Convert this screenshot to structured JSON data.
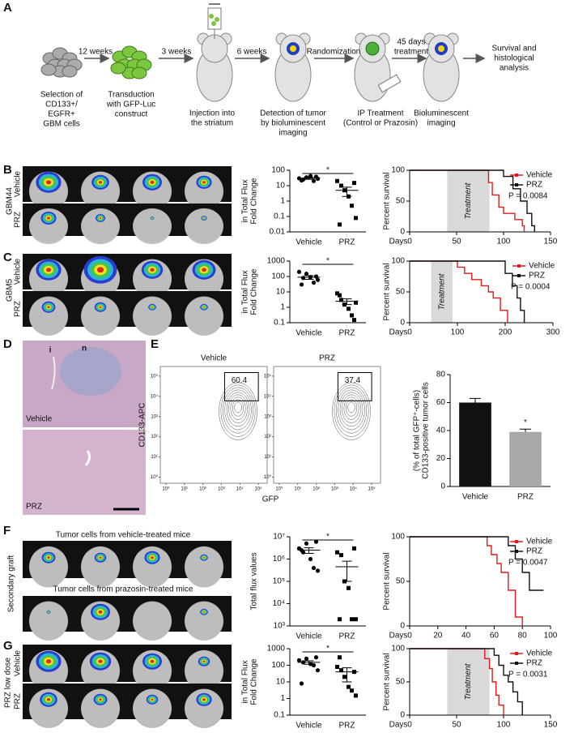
{
  "figure": {
    "panel_letters": [
      "A",
      "B",
      "C",
      "D",
      "E",
      "F",
      "G"
    ],
    "schematic": {
      "arrows": [
        [
          "12 weeks"
        ],
        [
          "3 weeks"
        ],
        [
          "6 weeks"
        ],
        [
          "Randomization"
        ],
        [
          "45 days",
          "treatment"
        ]
      ],
      "captions": [
        [
          "Selection of",
          "CD133+/",
          "EGFR+",
          "GBM cells"
        ],
        [
          "Transduction",
          "with GFP-Luc",
          "construct"
        ],
        [
          "Injection into",
          "the striatum"
        ],
        [
          "Detection of tumor",
          "by bioluminescent",
          "imaging"
        ],
        [
          "IP Treatment",
          "(Control or Prazosin)"
        ],
        [
          "Bioluminescent",
          "imaging"
        ],
        [
          "Survival and",
          "histological",
          "analysis"
        ]
      ]
    },
    "images": {
      "B": {
        "model": "GBM44",
        "rows": [
          "Vehicle",
          "PRZ"
        ]
      },
      "C": {
        "model": "GBM5",
        "rows": [
          "Vehicle",
          "PRZ"
        ]
      },
      "D": {
        "regions": [
          "i",
          "n"
        ],
        "rows": [
          "Vehicle",
          "PRZ"
        ]
      },
      "F": {
        "model": "Secondary graft",
        "rows": [
          "Tumor cells from vehicle-treated mice",
          "Tumor cells from prazosin-treated mice"
        ]
      },
      "G": {
        "model": "PRZ low dose",
        "rows": [
          "Vehicle",
          "PRZ"
        ]
      }
    }
  },
  "chart_data": [
    {
      "type": "dot",
      "categories": [
        "Vehicle",
        "PRZ"
      ],
      "markers": [
        "circle",
        "square"
      ],
      "values": [
        [
          30,
          25,
          35,
          42,
          20,
          28,
          22,
          38
        ],
        [
          20,
          10,
          5,
          2,
          0.5,
          0.08,
          0.03,
          15
        ]
      ],
      "means": [
        30,
        5
      ],
      "errors": [
        4,
        3
      ],
      "ylabel": [
        "Fold Change",
        "in Total Flux"
      ],
      "log": true,
      "ylim": [
        0.01,
        100
      ],
      "yticks": [
        0.01,
        0.1,
        1,
        10,
        100
      ],
      "annotation": "*"
    },
    {
      "type": "survival",
      "xlabel": "Days",
      "ylabel": "Percent survival",
      "series": [
        {
          "name": "Vehicle",
          "color": "#e31a1c",
          "x": [
            0,
            80,
            84,
            88,
            95,
            100,
            112,
            120,
            122
          ],
          "values": [
            100,
            100,
            80,
            60,
            40,
            30,
            20,
            10,
            0
          ]
        },
        {
          "name": "PRZ",
          "color": "#111111",
          "x": [
            0,
            88,
            100,
            110,
            118,
            125,
            130,
            133
          ],
          "values": [
            100,
            100,
            90,
            70,
            50,
            30,
            10,
            0
          ]
        }
      ],
      "xlim": [
        0,
        150
      ],
      "xticks": [
        0,
        50,
        100,
        150
      ],
      "ylim": [
        0,
        100
      ],
      "yticks": [
        0,
        50,
        100
      ],
      "treatment": {
        "range": [
          40,
          85
        ],
        "label": "Treatment"
      },
      "annotation": "P = 0.0084",
      "legend": "upper right"
    },
    {
      "type": "dot",
      "categories": [
        "Vehicle",
        "PRZ"
      ],
      "markers": [
        "circle",
        "square"
      ],
      "values": [
        [
          200,
          80,
          150,
          90,
          40,
          60,
          30,
          100
        ],
        [
          8,
          3,
          1.5,
          0.8,
          0.3,
          2,
          6,
          0.15
        ]
      ],
      "means": [
        90,
        2.5
      ],
      "errors": [
        25,
        1
      ],
      "ylabel": [
        "Fold Change",
        "in Total Flux"
      ],
      "log": true,
      "ylim": [
        0.1,
        1000
      ],
      "yticks": [
        0.1,
        1,
        10,
        100,
        1000
      ],
      "annotation": "*"
    },
    {
      "type": "survival",
      "xlabel": "Days",
      "ylabel": "Percent survival",
      "series": [
        {
          "name": "Vehicle",
          "color": "#e31a1c",
          "x": [
            0,
            90,
            100,
            115,
            130,
            150,
            165,
            175,
            190,
            205
          ],
          "values": [
            100,
            100,
            90,
            80,
            70,
            60,
            50,
            40,
            20,
            0
          ]
        },
        {
          "name": "PRZ",
          "color": "#111111",
          "x": [
            0,
            180,
            200,
            215,
            225,
            232,
            240
          ],
          "values": [
            100,
            100,
            80,
            60,
            40,
            20,
            0
          ]
        }
      ],
      "xlim": [
        0,
        300
      ],
      "xticks": [
        0,
        100,
        200,
        300
      ],
      "ylim": [
        0,
        100
      ],
      "yticks": [
        0,
        50,
        100
      ],
      "treatment": {
        "range": [
          45,
          90
        ],
        "label": "Treatment"
      },
      "annotation": "P = 0.0004",
      "legend": "upper right"
    },
    {
      "type": "flow",
      "xlabel": "GFP",
      "ylabel": "CD133-APC",
      "log": true,
      "panels": [
        {
          "title": "Vehicle",
          "gate_value": 60.4
        },
        {
          "title": "PRZ",
          "gate_value": 37.4
        }
      ],
      "xlim": [
        0.5,
        300000
      ],
      "ylim": [
        0.5,
        300000
      ],
      "xticks": [
        {
          "value": 1,
          "label": "10⁰"
        },
        {
          "value": 10,
          "label": "10¹"
        },
        {
          "value": 100,
          "label": "10²"
        },
        {
          "value": 1000,
          "label": "10³"
        },
        {
          "value": 10000,
          "label": "10⁴"
        },
        {
          "value": 100000,
          "label": "10⁵"
        }
      ],
      "yticks": [
        {
          "value": 1,
          "label": "10⁰"
        },
        {
          "value": 10,
          "label": "10¹"
        },
        {
          "value": 100,
          "label": "10²"
        },
        {
          "value": 1000,
          "label": "10³"
        },
        {
          "value": 10000,
          "label": "10⁴"
        },
        {
          "value": 100000,
          "label": "10⁵"
        }
      ]
    },
    {
      "type": "bar",
      "categories": [
        "Vehicle",
        "PRZ"
      ],
      "values": [
        60,
        39
      ],
      "errors": [
        3,
        2
      ],
      "colors": [
        "#111111",
        "#a8a8a8"
      ],
      "ylabel": [
        "CD133-positive tumor cells",
        "(% of total GFP⁺-cells)"
      ],
      "ylim": [
        0,
        80
      ],
      "yticks": [
        0,
        20,
        40,
        60,
        80
      ],
      "annotation": "*"
    },
    {
      "type": "dot",
      "categories": [
        "Vehicle",
        "PRZ"
      ],
      "markers": [
        "circle",
        "square"
      ],
      "values": [
        [
          3000000,
          2000000,
          5000000,
          1000000,
          400000,
          300000,
          2500000,
          6000000
        ],
        [
          2000000,
          1500000,
          100000,
          50000,
          2000,
          2000,
          2000,
          3000000
        ]
      ],
      "means": [
        2500000,
        450000
      ],
      "errors": [
        700000,
        350000
      ],
      "ylabel": [
        "Total flux values"
      ],
      "log": true,
      "ylim": [
        1000,
        10000000
      ],
      "yticks": [
        {
          "value": 1000,
          "label": "10³"
        },
        {
          "value": 10000,
          "label": "10⁴"
        },
        {
          "value": 100000,
          "label": "10⁵"
        },
        {
          "value": 1000000,
          "label": "10⁶"
        },
        {
          "value": 10000000,
          "label": "10⁷"
        }
      ],
      "annotation": "*"
    },
    {
      "type": "survival",
      "xlabel": "Days",
      "ylabel": "Percent survival",
      "series": [
        {
          "name": "Vehicle",
          "color": "#e31a1c",
          "x": [
            0,
            50,
            55,
            58,
            62,
            65,
            70,
            75,
            80
          ],
          "values": [
            100,
            100,
            90,
            80,
            70,
            60,
            40,
            10,
            0
          ]
        },
        {
          "name": "PRZ",
          "color": "#111111",
          "x": [
            0,
            50,
            70,
            75,
            80,
            85,
            95
          ],
          "values": [
            100,
            100,
            90,
            75,
            60,
            40,
            40
          ]
        }
      ],
      "xlim": [
        0,
        100
      ],
      "xticks": [
        0,
        20,
        40,
        60,
        80,
        100
      ],
      "ylim": [
        0,
        100
      ],
      "yticks": [
        0,
        50,
        100
      ],
      "annotation": "P = 0.0047",
      "legend": "upper right"
    },
    {
      "type": "dot",
      "categories": [
        "Vehicle",
        "PRZ"
      ],
      "markers": [
        "circle",
        "square"
      ],
      "values": [
        [
          200,
          150,
          250,
          120,
          100,
          50,
          8,
          300
        ],
        [
          80,
          50,
          20,
          5,
          3,
          1.5,
          300,
          40
        ]
      ],
      "means": [
        150,
        40
      ],
      "errors": [
        35,
        30
      ],
      "ylabel": [
        "Fold Change",
        "in Total Flux"
      ],
      "log": true,
      "ylim": [
        0.1,
        1000
      ],
      "yticks": [
        0.1,
        1,
        10,
        100,
        1000
      ],
      "annotation": "*"
    },
    {
      "type": "survival",
      "xlabel": "Days",
      "ylabel": "Percent survival",
      "series": [
        {
          "name": "Vehicle",
          "color": "#e31a1c",
          "x": [
            0,
            75,
            80,
            85,
            88,
            92,
            95,
            100
          ],
          "values": [
            100,
            100,
            85,
            70,
            50,
            30,
            15,
            0
          ]
        },
        {
          "name": "PRZ",
          "color": "#111111",
          "x": [
            0,
            80,
            90,
            95,
            100,
            105,
            110,
            115,
            120
          ],
          "values": [
            100,
            100,
            90,
            75,
            60,
            50,
            35,
            20,
            0
          ]
        }
      ],
      "xlim": [
        0,
        150
      ],
      "xticks": [
        0,
        50,
        100,
        150
      ],
      "ylim": [
        0,
        100
      ],
      "yticks": [
        0,
        50,
        100
      ],
      "treatment": {
        "range": [
          40,
          85
        ],
        "label": "Treatment"
      },
      "annotation": "P = 0.0031",
      "legend": "upper right"
    }
  ]
}
